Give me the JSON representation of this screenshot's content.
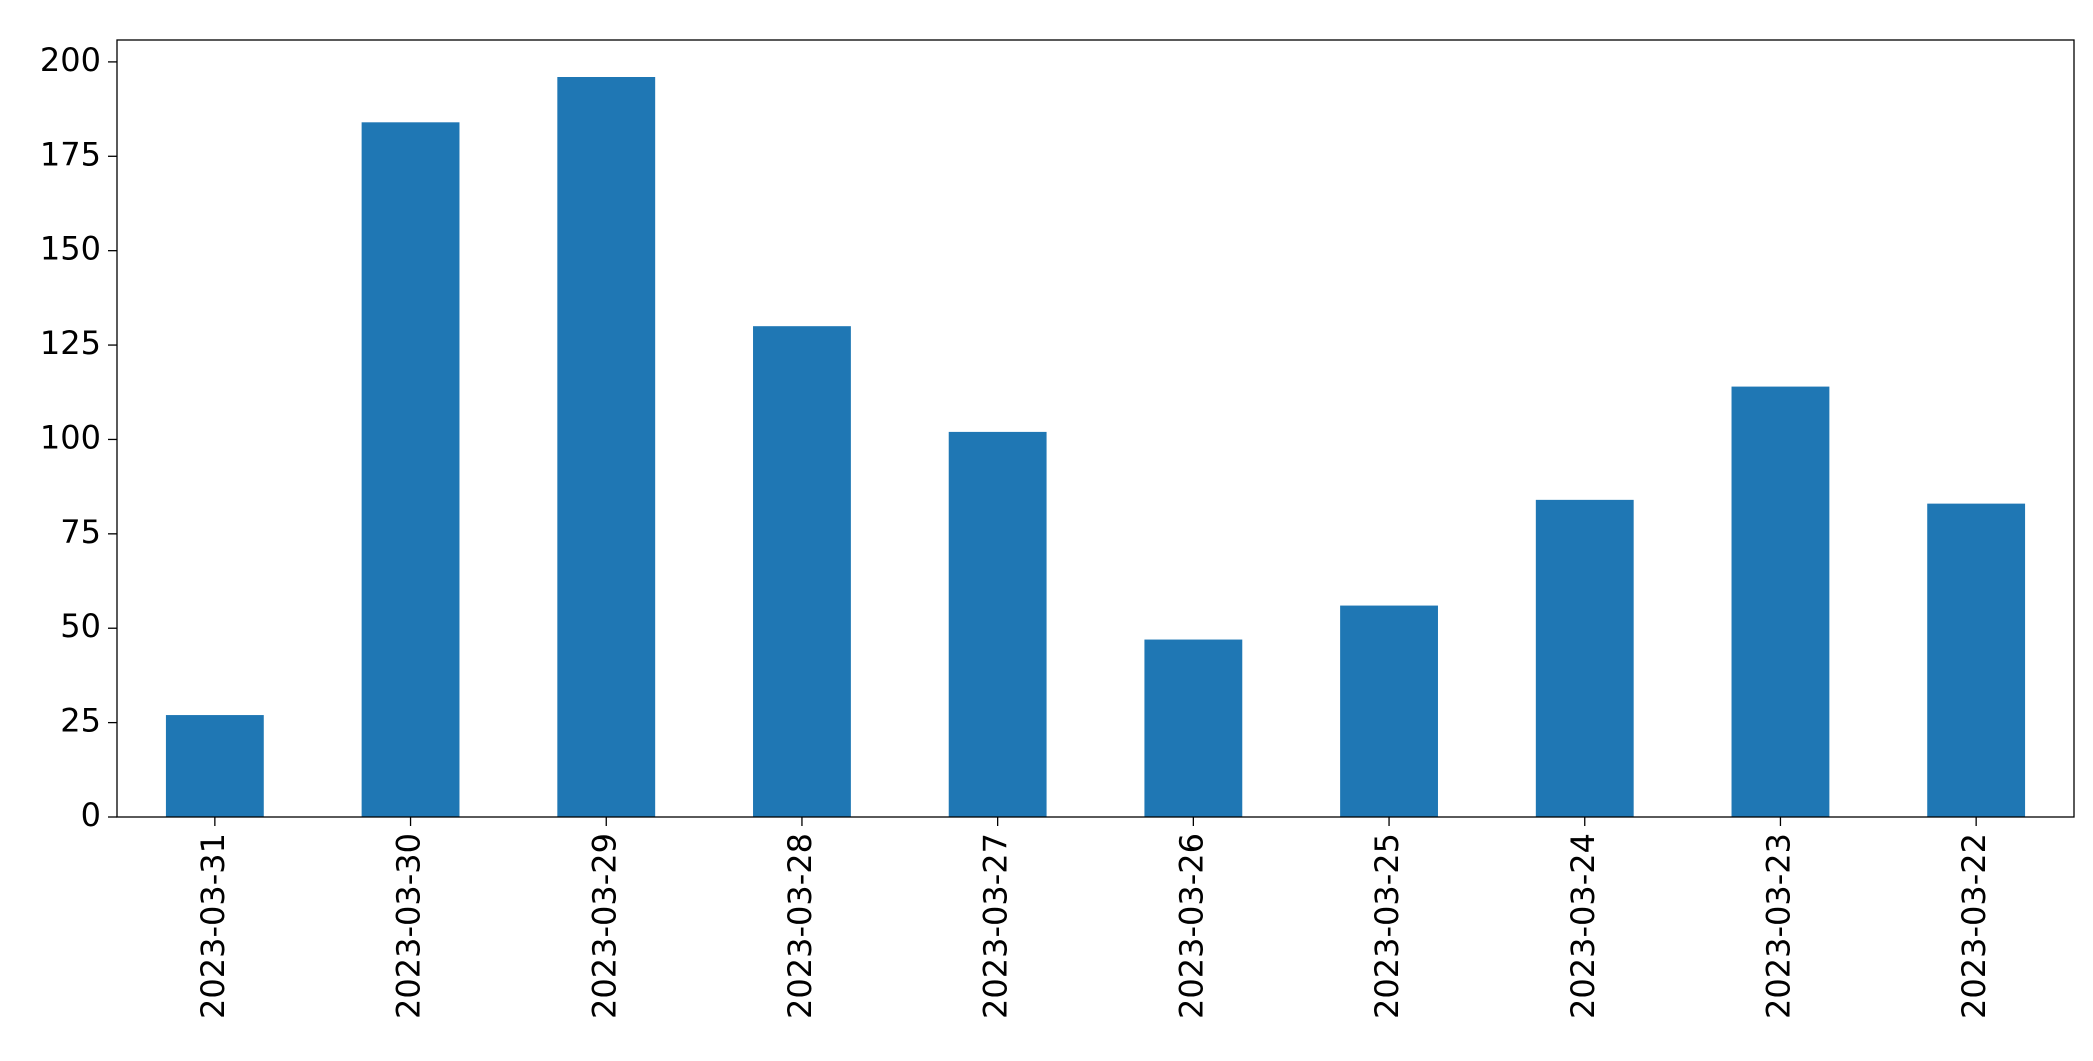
{
  "chart_data": {
    "type": "bar",
    "categories": [
      "2023-03-31",
      "2023-03-30",
      "2023-03-29",
      "2023-03-28",
      "2023-03-27",
      "2023-03-26",
      "2023-03-25",
      "2023-03-24",
      "2023-03-23",
      "2023-03-22"
    ],
    "values": [
      27,
      184,
      196,
      130,
      102,
      47,
      56,
      84,
      114,
      83
    ],
    "color": "#1f77b4",
    "ylim": [
      0,
      205.8
    ],
    "yticks": [
      0,
      25,
      50,
      75,
      100,
      125,
      150,
      175,
      200
    ],
    "grid": false
  }
}
